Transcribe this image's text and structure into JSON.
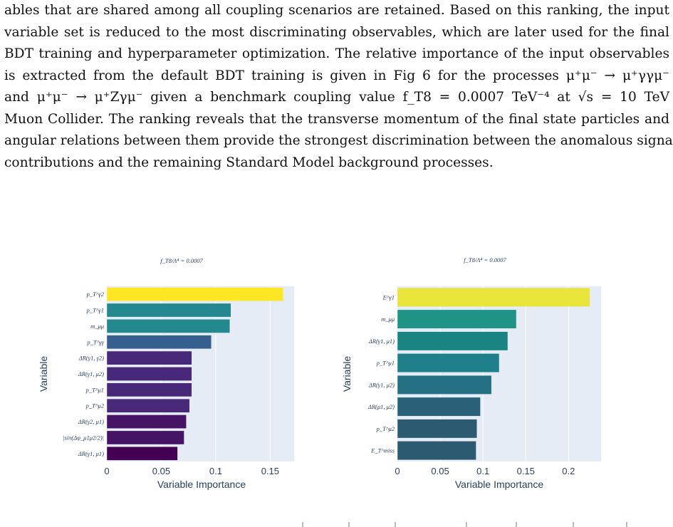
{
  "paragraph": {
    "lines": [
      "ables that are shared among all coupling scenarios are retained. Based on this ranking, the input",
      "variable set is reduced to the most discriminating observables, which are later used for the final",
      "BDT training and hyperparameter optimization. The relative importance of the input observables",
      "is extracted from the default BDT training is given in Fig 6 for the processes μ⁺μ⁻ → μ⁺γγμ⁻",
      "and μ⁺μ⁻ → μ⁺Zγμ⁻ given a benchmark coupling value f_T8 = 0.0007 TeV⁻⁴ at √s = 10 TeV",
      "Muon Collider. The ranking reveals that the transverse momentum of the final state particles and",
      "angular relations between them provide the strongest discrimination between the anomalous signal",
      "contributions and the remaining Standard Model background processes."
    ]
  },
  "chart_data": [
    {
      "type": "bar",
      "orientation": "horizontal",
      "title": "f_T8/Λ⁴ = 0.0007",
      "xlabel": "Variable Importance",
      "ylabel": "Variable",
      "xlim": [
        0,
        0.172
      ],
      "xticks": [
        "0",
        "0.05",
        "0.1",
        "0.15"
      ],
      "xtick_values": [
        0,
        0.05,
        0.1,
        0.15
      ],
      "grid": true,
      "categories": [
        "p_T^γ2",
        "p_T^γ1",
        "m_μμ",
        "p_T^γγ",
        "ΔR(γ1, γ2)",
        "ΔR(γ1, μ2)",
        "p_T^μ1",
        "p_T^μ2",
        "ΔR(γ2, μ1)",
        "|sin(Δφ_μ1μ2/2)|",
        "ΔR(γ1, μ1)"
      ],
      "values": [
        0.162,
        0.114,
        0.113,
        0.096,
        0.078,
        0.078,
        0.078,
        0.076,
        0.073,
        0.071,
        0.065
      ],
      "colors": [
        "#fde725",
        "#23898e",
        "#23898e",
        "#355f8d",
        "#482878",
        "#482878",
        "#482878",
        "#482878",
        "#471365",
        "#471365",
        "#440154"
      ]
    },
    {
      "type": "bar",
      "orientation": "horizontal",
      "title": "f_T8/Λ⁴ = 0.0007",
      "xlabel": "Variable Importance",
      "ylabel": "Variable",
      "xlim": [
        0,
        0.238
      ],
      "xticks": [
        "0",
        "0.05",
        "0.1",
        "0.15",
        "0.2"
      ],
      "xtick_values": [
        0,
        0.05,
        0.1,
        0.15,
        0.2
      ],
      "grid": true,
      "categories": [
        "E^γ1",
        "m_μμ",
        "ΔR(γ1, μ1)",
        "p_T^μ1",
        "ΔR(γ1, μ2)",
        "ΔR(μ1, μ2)",
        "p_T^μ2",
        "E_T^miss"
      ],
      "values": [
        0.225,
        0.139,
        0.129,
        0.119,
        0.11,
        0.097,
        0.093,
        0.092
      ],
      "colors": [
        "#eae53b",
        "#1f9386",
        "#1a8483",
        "#1f7f8a",
        "#257082",
        "#2a6179",
        "#2c5a70",
        "#2c5a70"
      ]
    }
  ]
}
